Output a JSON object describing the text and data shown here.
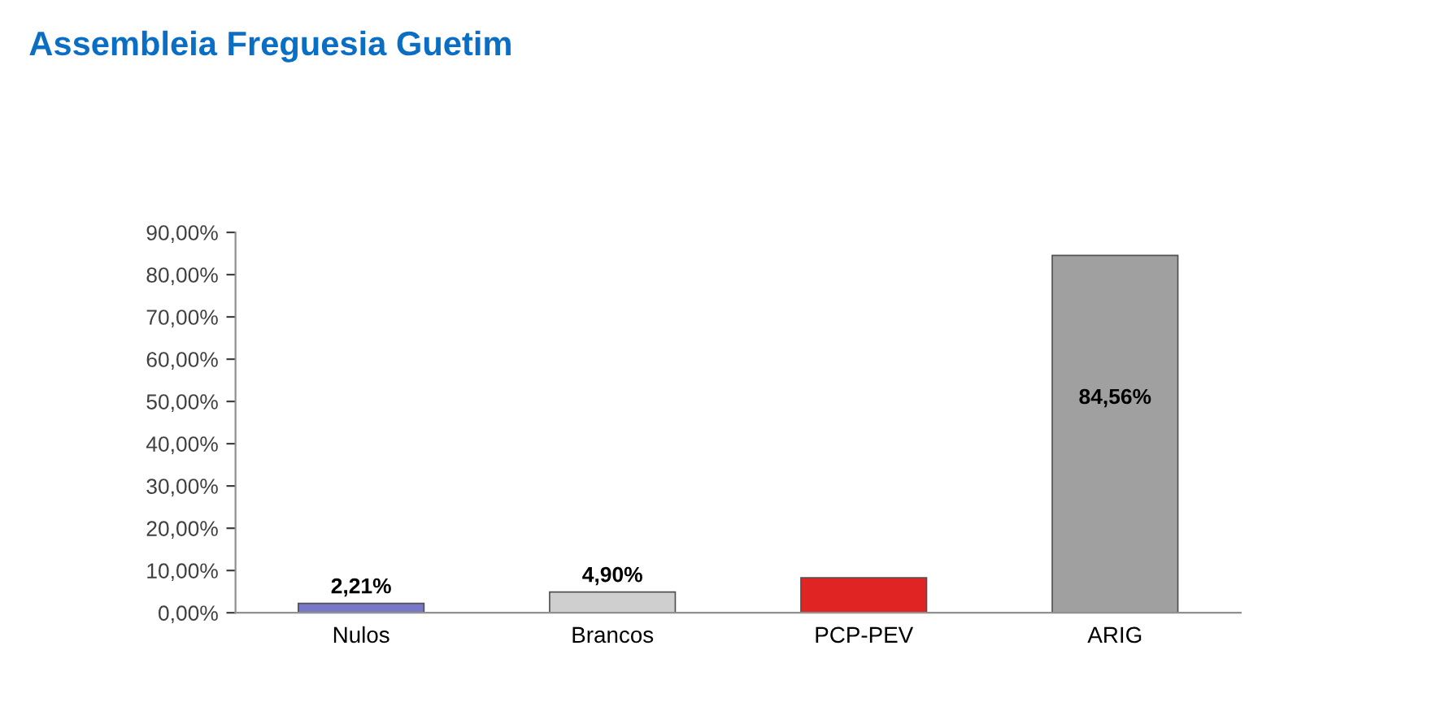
{
  "chart_data": {
    "type": "bar",
    "title": "Assembleia Freguesia Guetim",
    "categories": [
      "Nulos",
      "Brancos",
      "PCP-PEV",
      "ARIG"
    ],
    "values": [
      2.21,
      4.9,
      8.3,
      84.56
    ],
    "colors": [
      "#7878c8",
      "#cfcfcf",
      "#e02424",
      "#a0a0a0"
    ],
    "value_labels": [
      "2,21%",
      "4,90%",
      null,
      "84,56%"
    ],
    "ylim": [
      0,
      90
    ],
    "yticks": [
      {
        "value": 0,
        "label": "0,00%"
      },
      {
        "value": 10,
        "label": "10,00%"
      },
      {
        "value": 20,
        "label": "20,00%"
      },
      {
        "value": 30,
        "label": "30,00%"
      },
      {
        "value": 40,
        "label": "40,00%"
      },
      {
        "value": 50,
        "label": "50,00%"
      },
      {
        "value": 60,
        "label": "60,00%"
      },
      {
        "value": 70,
        "label": "70,00%"
      },
      {
        "value": 80,
        "label": "80,00%"
      },
      {
        "value": 90,
        "label": "90,00%"
      }
    ]
  }
}
